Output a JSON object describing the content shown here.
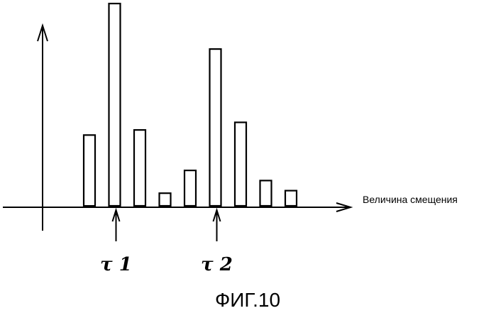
{
  "chart_data": {
    "type": "bar",
    "title": "",
    "xlabel": "Величина смещения",
    "ylabel": "",
    "ylim": [
      0,
      40
    ],
    "grid": false,
    "legend": "none",
    "values": [
      14,
      40,
      15,
      2.5,
      7,
      31,
      16.5,
      5,
      3
    ],
    "bar_color": "#000000",
    "markers": [
      {
        "label": "τ 1",
        "bar_index": 1
      },
      {
        "label": "τ 2",
        "bar_index": 5
      }
    ]
  },
  "caption": "ФИГ.10"
}
